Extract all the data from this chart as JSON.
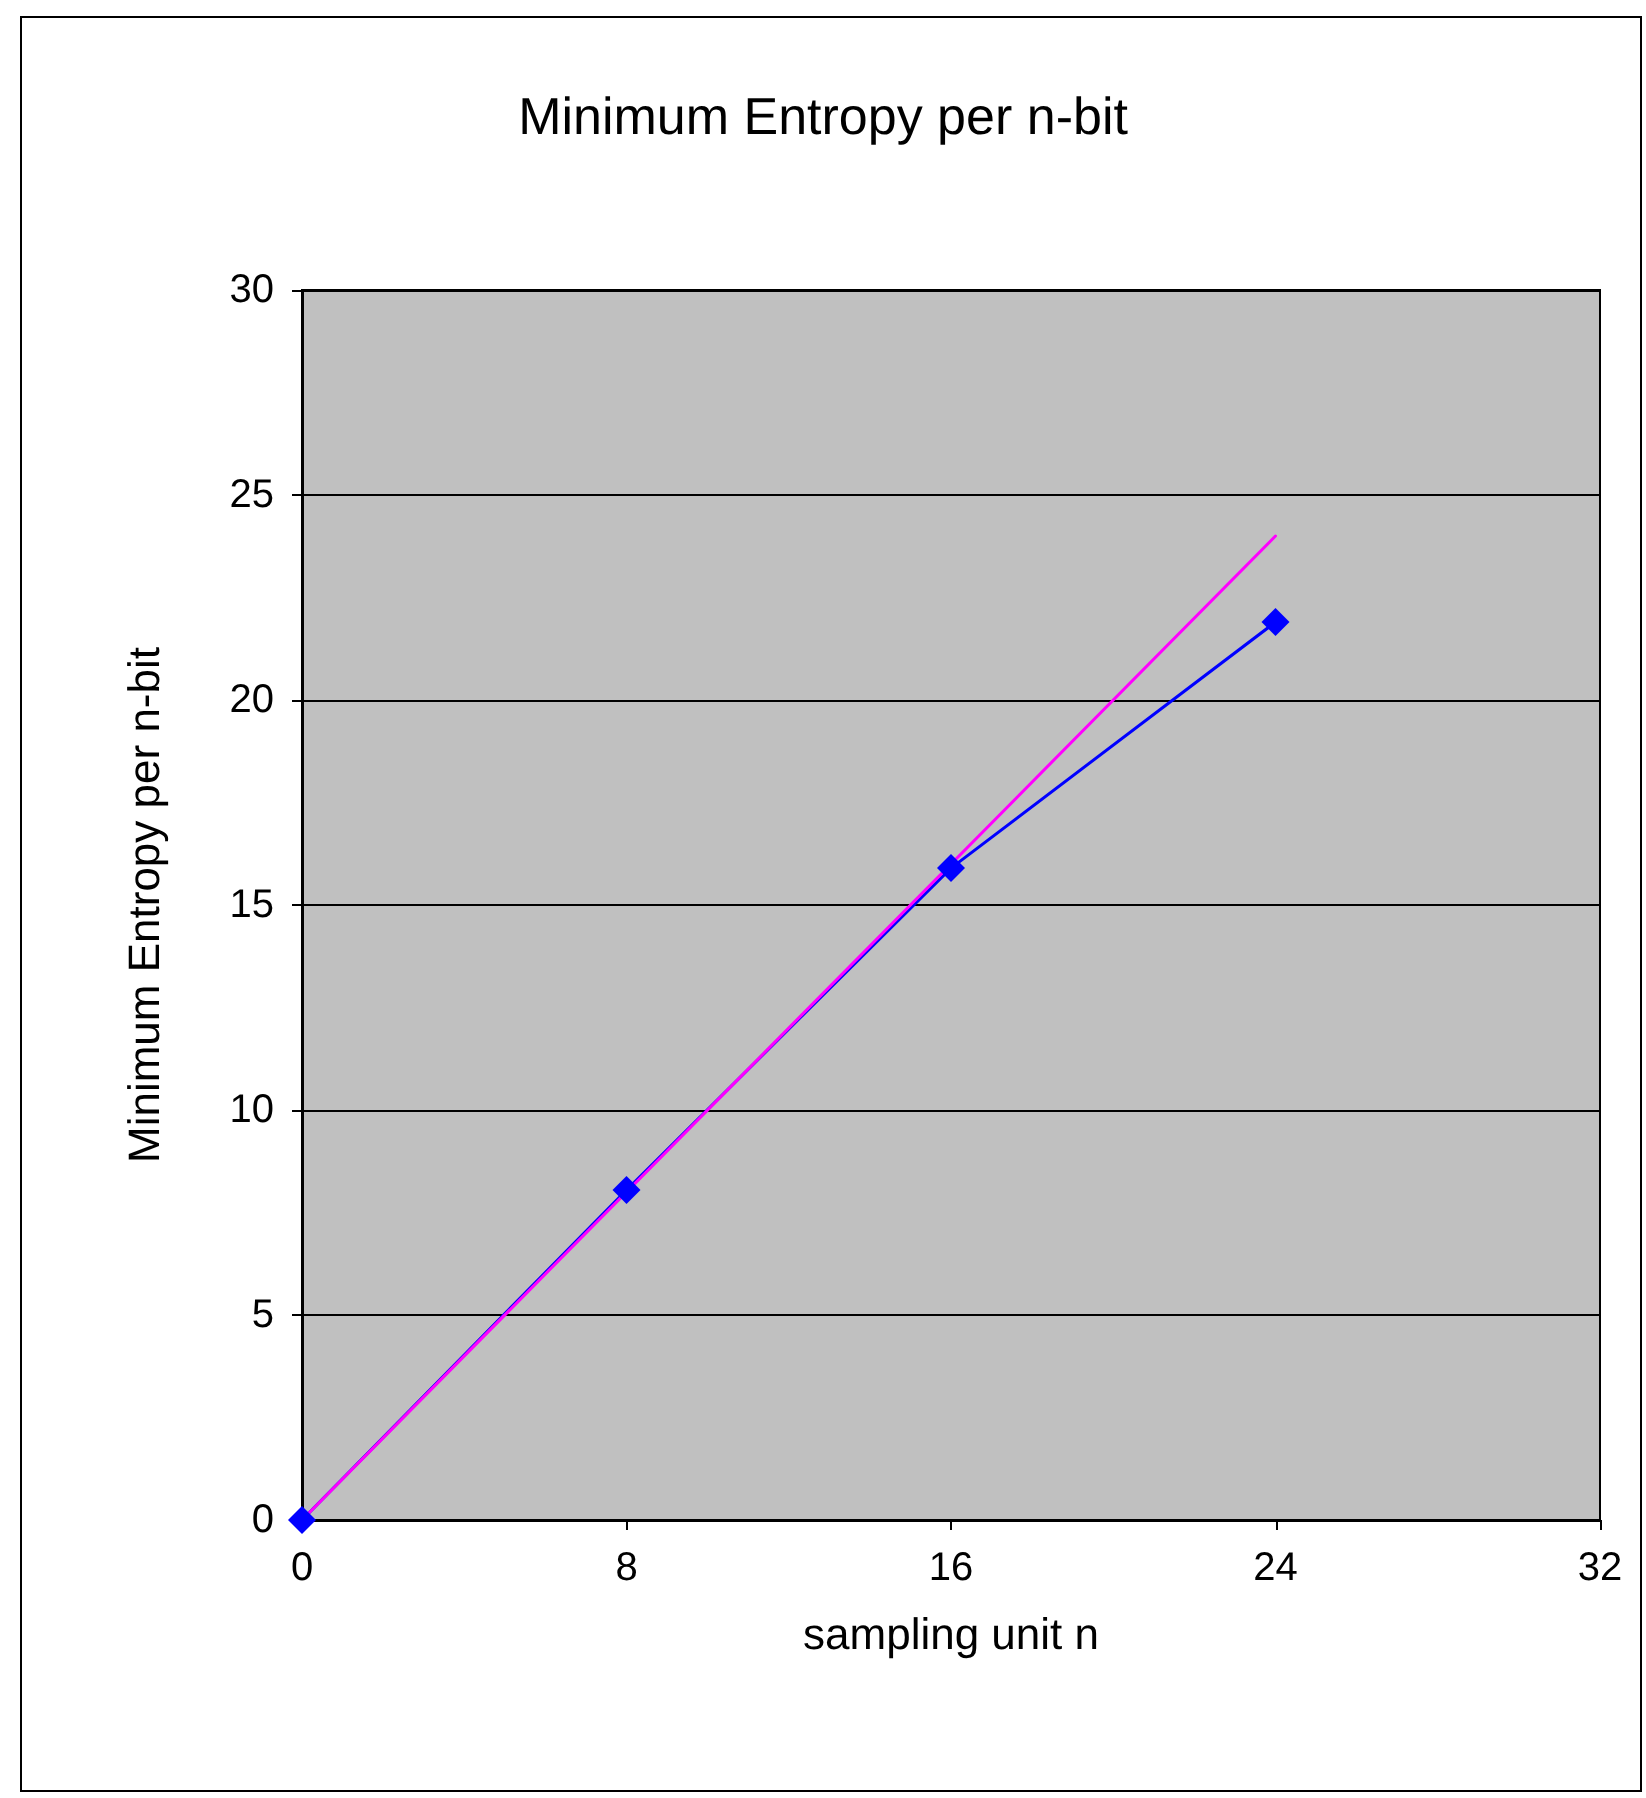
{
  "chart_data": {
    "type": "line",
    "title": "Minimum Entropy per n-bit",
    "xlabel": "sampling unit n",
    "ylabel": "Minimum Entropy per n-bit",
    "xlim": [
      0,
      32
    ],
    "xticks": [
      0,
      8,
      16,
      24,
      32
    ],
    "ylim": [
      0,
      30
    ],
    "yticks": [
      0,
      5,
      10,
      15,
      20,
      25,
      30
    ],
    "grid": "y",
    "series": [
      {
        "color": "#0000ff",
        "x": [
          0,
          8,
          16,
          24
        ],
        "values": [
          0,
          8.05,
          15.9,
          21.9
        ],
        "marker": "diamond"
      },
      {
        "color": "#ff00ff",
        "x": [
          0,
          24
        ],
        "values": [
          0,
          24
        ],
        "marker": "none"
      }
    ]
  }
}
